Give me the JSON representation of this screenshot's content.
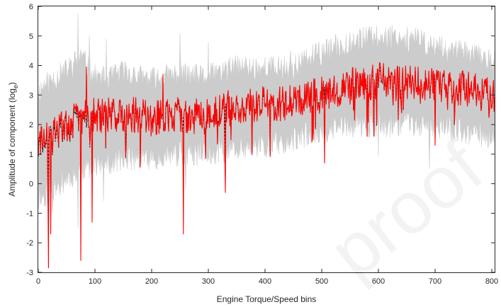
{
  "chart_data": {
    "type": "line",
    "xlabel": "Engine Torque/Speed bins",
    "ylabel_prefix": "Amplitude of component (log",
    "ylabel_sub": "e",
    "ylabel_suffix": ")",
    "xlim": [
      0,
      805
    ],
    "ylim": [
      -3,
      6
    ],
    "xticks": [
      0,
      100,
      200,
      300,
      400,
      500,
      600,
      700,
      800
    ],
    "yticks": [
      -3,
      -2,
      -1,
      0,
      1,
      2,
      3,
      4,
      5,
      6
    ],
    "xtick_labels": [
      "0",
      "100",
      "200",
      "300",
      "400",
      "500",
      "600",
      "700",
      "800"
    ],
    "ytick_labels": [
      "-3",
      "-2",
      "-1",
      "0",
      "1",
      "2",
      "3",
      "4",
      "5",
      "6"
    ],
    "grid": false,
    "series": [
      {
        "kind": "band",
        "color": "#cccccc",
        "x": [
          0,
          25,
          50,
          75,
          100,
          125,
          150,
          175,
          200,
          225,
          250,
          275,
          300,
          325,
          350,
          375,
          400,
          425,
          450,
          475,
          500,
          525,
          550,
          575,
          600,
          625,
          650,
          675,
          700,
          725,
          750,
          775,
          800
        ],
        "upper": [
          3.1,
          3.5,
          3.8,
          4.3,
          3.6,
          3.5,
          3.8,
          3.6,
          3.5,
          3.6,
          3.7,
          3.6,
          3.6,
          3.8,
          3.9,
          3.9,
          3.9,
          3.9,
          3.9,
          4.2,
          4.4,
          4.6,
          4.8,
          4.9,
          4.9,
          5.0,
          4.9,
          4.8,
          4.6,
          4.5,
          4.4,
          4.3,
          4.1
        ],
        "lower": [
          -0.5,
          -0.2,
          0.2,
          0.5,
          0.7,
          0.7,
          0.9,
          0.9,
          0.9,
          1.0,
          1.0,
          1.0,
          1.0,
          1.1,
          1.2,
          1.2,
          1.3,
          1.4,
          1.5,
          1.7,
          1.8,
          1.9,
          2.0,
          2.0,
          2.0,
          2.0,
          2.1,
          2.0,
          2.0,
          1.9,
          1.8,
          1.7,
          1.6
        ],
        "spikes_up": [
          [
            70,
            5.75
          ],
          [
            90,
            5.0
          ],
          [
            120,
            4.9
          ],
          [
            250,
            5.1
          ],
          [
            300,
            4.8
          ],
          [
            445,
            4.5
          ]
        ],
        "spikes_down": [
          [
            25,
            -1.0
          ],
          [
            70,
            -1.5
          ],
          [
            115,
            -0.6
          ],
          [
            260,
            -0.2
          ],
          [
            600,
            0.9
          ],
          [
            690,
            0.5
          ]
        ]
      },
      {
        "kind": "line",
        "color": "#000000",
        "dash": true,
        "x": [
          0,
          25,
          50,
          75,
          100,
          125,
          150,
          175,
          200,
          225,
          250,
          275,
          300,
          325,
          350,
          375,
          400,
          425,
          450,
          475,
          500,
          525,
          550,
          575,
          600,
          625,
          650,
          675,
          700,
          725,
          750,
          775,
          800
        ],
        "y": [
          1.2,
          1.5,
          1.9,
          2.2,
          2.3,
          2.3,
          2.4,
          2.3,
          2.2,
          2.3,
          2.3,
          2.3,
          2.3,
          2.5,
          2.6,
          2.6,
          2.7,
          2.7,
          2.8,
          3.0,
          3.1,
          3.2,
          3.3,
          3.4,
          3.4,
          3.4,
          3.4,
          3.3,
          3.3,
          3.2,
          3.2,
          3.1,
          2.9
        ]
      },
      {
        "kind": "line",
        "color": "#ff0000",
        "dash": false,
        "x": [
          0,
          25,
          50,
          75,
          100,
          125,
          150,
          175,
          200,
          225,
          250,
          275,
          300,
          325,
          350,
          375,
          400,
          425,
          450,
          475,
          500,
          525,
          550,
          575,
          600,
          625,
          650,
          675,
          700,
          725,
          750,
          775,
          800
        ],
        "y": [
          1.3,
          1.6,
          2.0,
          2.3,
          2.3,
          2.3,
          2.4,
          2.3,
          2.2,
          2.3,
          2.3,
          2.3,
          2.3,
          2.5,
          2.6,
          2.6,
          2.7,
          2.7,
          2.8,
          3.0,
          3.1,
          3.2,
          3.3,
          3.4,
          3.5,
          3.4,
          3.4,
          3.3,
          3.3,
          3.2,
          3.2,
          3.1,
          2.9
        ],
        "spikes_down": [
          [
            18,
            -2.85
          ],
          [
            22,
            -1.7
          ],
          [
            75,
            -2.6
          ],
          [
            95,
            -1.3
          ],
          [
            256,
            -1.7
          ],
          [
            330,
            -0.3
          ],
          [
            505,
            0.7
          ],
          [
            580,
            1.6
          ],
          [
            700,
            1.3
          ]
        ],
        "spikes_up": [
          [
            85,
            3.95
          ],
          [
            220,
            3.7
          ]
        ]
      }
    ]
  },
  "watermark": "proof"
}
